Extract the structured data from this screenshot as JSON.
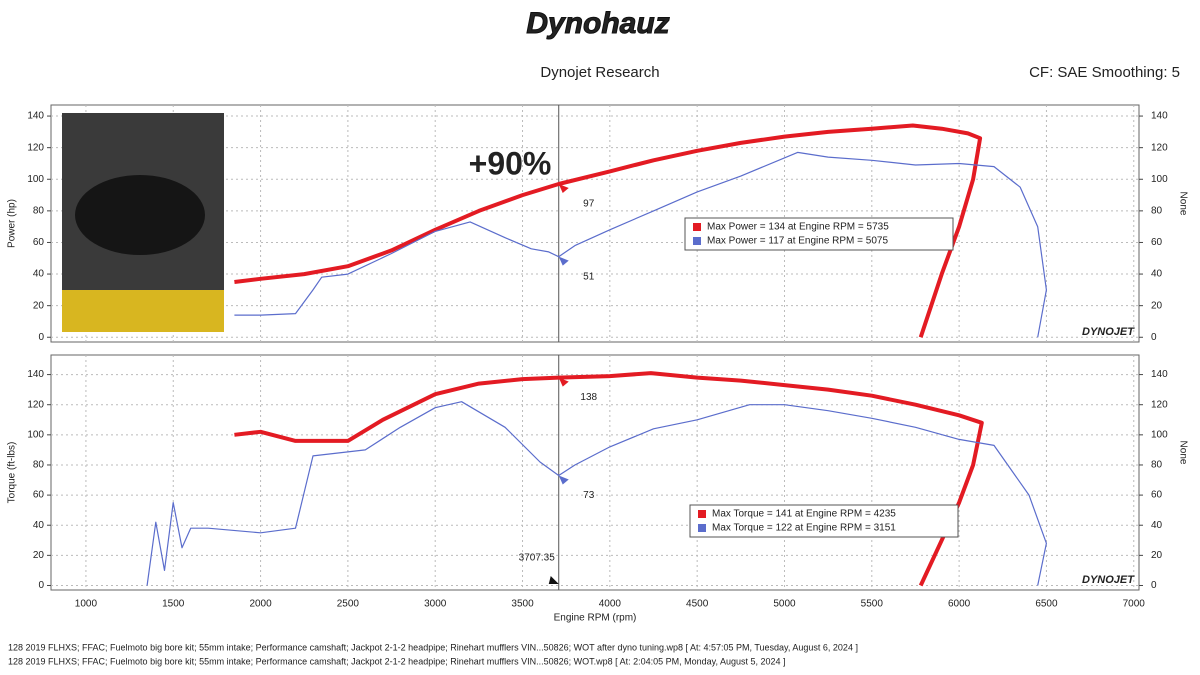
{
  "header": {
    "logo": "Dynohauz",
    "subtitle": "Dynojet Research",
    "settings": "CF: SAE Smoothing: 5",
    "brand": "DYNOJET"
  },
  "footer": [
    "128 2019 FLHXS; FFAC; Fuelmoto big bore kit; 55mm intake; Performance camshaft; Jackpot 2-1-2 headpipe; Rinehart mufflers VIN...50826; WOT after dyno tuning.wp8 [ At: 4:57:05 PM, Tuesday, August 6, 2024 ]",
    "128 2019 FLHXS; FFAC; Fuelmoto big bore kit; 55mm intake; Performance camshaft; Jackpot 2-1-2 headpipe; Rinehart mufflers VIN...50826; WOT.wp8 [ At: 2:04:05 PM, Monday, August 5, 2024 ]"
  ],
  "chart_data": [
    {
      "type": "line",
      "ylabel": "Power (hp)",
      "y2label": "None",
      "annotation": "+90%",
      "xlim": [
        800,
        7030
      ],
      "xticks": [
        1000,
        1500,
        2000,
        2500,
        3000,
        3500,
        4000,
        4500,
        5000,
        5500,
        6000,
        6500,
        7000
      ],
      "ylim": [
        -3,
        147
      ],
      "yticks": [
        0,
        20,
        40,
        60,
        80,
        100,
        120,
        140
      ],
      "y2lim": [
        -3,
        147
      ],
      "y2ticks": [
        0,
        20,
        40,
        60,
        80,
        100,
        120,
        140
      ],
      "grid": true,
      "cursor_x": 3707.35,
      "cursor_values": [
        97,
        51
      ],
      "series": [
        {
          "name": "Max Power = 134 at Engine RPM = 5735",
          "color": "#e31b23",
          "x": [
            1850,
            2000,
            2250,
            2500,
            2750,
            3000,
            3250,
            3500,
            3707,
            4000,
            4250,
            4500,
            4750,
            5000,
            5250,
            5500,
            5735,
            5900,
            6050,
            6120,
            6080,
            6000,
            5900,
            5780
          ],
          "values": [
            35,
            37,
            40,
            45,
            55,
            68,
            80,
            90,
            97,
            105,
            112,
            118,
            123,
            127,
            130,
            132,
            134,
            132,
            129,
            126,
            100,
            70,
            40,
            0
          ]
        },
        {
          "name": "Max Power = 117 at Engine RPM = 5075",
          "color": "#5b6dcc",
          "x": [
            1850,
            2000,
            2200,
            2300,
            2350,
            2500,
            2750,
            3000,
            3200,
            3400,
            3550,
            3650,
            3707,
            3800,
            4000,
            4250,
            4500,
            4750,
            5075,
            5250,
            5500,
            5750,
            6000,
            6200,
            6350,
            6450,
            6500,
            6450
          ],
          "values": [
            14,
            14,
            15,
            30,
            38,
            40,
            53,
            67,
            73,
            63,
            56,
            54,
            51,
            58,
            68,
            80,
            92,
            102,
            117,
            114,
            112,
            109,
            110,
            108,
            95,
            70,
            30,
            0
          ]
        }
      ]
    },
    {
      "type": "line",
      "ylabel": "Torque (ft-lbs)",
      "y2label": "None",
      "xlabel": "Engine RPM (rpm)",
      "xlim": [
        800,
        7030
      ],
      "xticks": [
        1000,
        1500,
        2000,
        2500,
        3000,
        3500,
        4000,
        4500,
        5000,
        5500,
        6000,
        6500,
        7000
      ],
      "ylim": [
        -3,
        153
      ],
      "yticks": [
        0,
        20,
        40,
        60,
        80,
        100,
        120,
        140
      ],
      "y2lim": [
        -3,
        153
      ],
      "y2ticks": [
        0,
        20,
        40,
        60,
        80,
        100,
        120,
        140
      ],
      "grid": true,
      "cursor_x": 3707.35,
      "cursor_values": [
        138,
        73
      ],
      "series": [
        {
          "name": "Max Torque = 141 at Engine RPM = 4235",
          "color": "#e31b23",
          "x": [
            1850,
            2000,
            2200,
            2500,
            2700,
            3000,
            3250,
            3500,
            3707,
            4000,
            4235,
            4500,
            4750,
            5000,
            5250,
            5500,
            5750,
            6000,
            6130,
            6080,
            6000,
            5900,
            5780
          ],
          "values": [
            100,
            102,
            96,
            96,
            110,
            127,
            134,
            137,
            138,
            139,
            141,
            138,
            136,
            133,
            130,
            126,
            120,
            113,
            108,
            80,
            55,
            30,
            0
          ]
        },
        {
          "name": "Max Torque = 122 at Engine RPM = 3151",
          "color": "#5b6dcc",
          "x": [
            1350,
            1400,
            1450,
            1500,
            1550,
            1600,
            1700,
            2000,
            2200,
            2300,
            2600,
            2800,
            3000,
            3151,
            3400,
            3600,
            3707,
            3800,
            4000,
            4250,
            4500,
            4800,
            5000,
            5250,
            5500,
            5750,
            6000,
            6200,
            6400,
            6500,
            6450
          ],
          "values": [
            0,
            42,
            10,
            55,
            25,
            38,
            38,
            35,
            38,
            86,
            90,
            105,
            118,
            122,
            105,
            82,
            73,
            80,
            92,
            104,
            110,
            120,
            120,
            116,
            111,
            105,
            97,
            93,
            60,
            28,
            0
          ]
        }
      ]
    }
  ]
}
